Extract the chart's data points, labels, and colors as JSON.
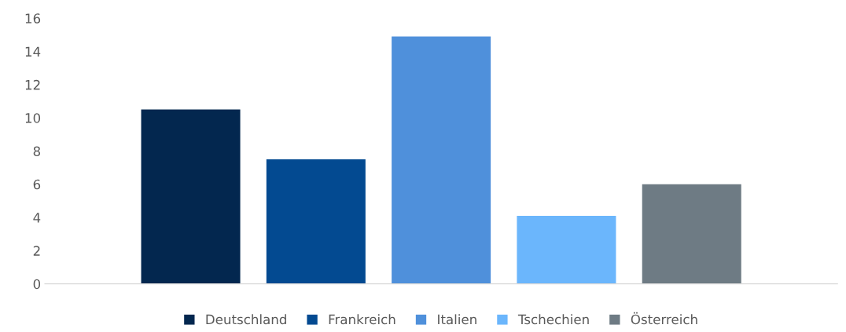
{
  "chart_data": {
    "type": "bar",
    "categories": [
      null
    ],
    "series": [
      {
        "name": "Deutschland",
        "color": "#03274f",
        "values": [
          10.5
        ]
      },
      {
        "name": "Frankreich",
        "color": "#034a91",
        "values": [
          7.5
        ]
      },
      {
        "name": "Italien",
        "color": "#4f90db",
        "values": [
          14.9
        ]
      },
      {
        "name": "Tschechien",
        "color": "#6bb6fc",
        "values": [
          4.1
        ]
      },
      {
        "name": "Österreich",
        "color": "#6e7b84",
        "values": [
          6.0
        ]
      }
    ],
    "ylim": [
      0,
      16
    ],
    "yticks": [
      0,
      2,
      4,
      6,
      8,
      10,
      12,
      14,
      16
    ],
    "grid": false,
    "legend": "bottom"
  }
}
